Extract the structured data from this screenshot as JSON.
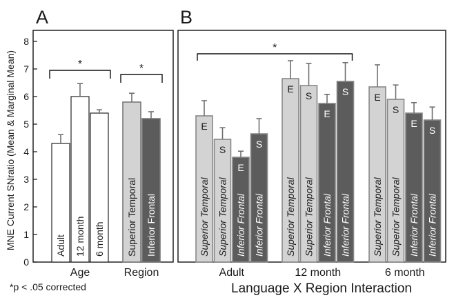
{
  "figure": {
    "ylabel": "MNE Current SNratio (Mean & Marginal Mean)",
    "footnote": "*p < .05 corrected",
    "sig_marker": "*"
  },
  "colors": {
    "white_bar": "#ffffff",
    "light_bar": "#d3d3d3",
    "dark_bar": "#5c5c5c",
    "error_bar": "#6f6f6f",
    "axis": "#111111"
  },
  "chart_data": [
    {
      "panel": "A",
      "type": "bar",
      "ylim": [
        0,
        8
      ],
      "yticks": [
        0,
        1,
        2,
        3,
        4,
        5,
        6,
        7,
        8
      ],
      "groups": [
        {
          "label": "Age",
          "bars": [
            {
              "label": "Adult",
              "value": 4.3,
              "error": 0.32,
              "fill": "white"
            },
            {
              "label": "12 month",
              "value": 6.0,
              "error": 0.47,
              "fill": "white"
            },
            {
              "label": "6 month",
              "value": 5.4,
              "error": 0.12,
              "fill": "white"
            }
          ]
        },
        {
          "label": "Region",
          "bars": [
            {
              "label": "Superior Temporal",
              "value": 5.8,
              "error": 0.32,
              "fill": "light"
            },
            {
              "label": "Inferior Frontal",
              "value": 5.2,
              "error": 0.25,
              "fill": "dark"
            }
          ]
        }
      ],
      "significance": [
        {
          "group": "Age",
          "from": 0,
          "to": 2,
          "label": "*"
        },
        {
          "group": "Region",
          "from": 0,
          "to": 1,
          "label": "*"
        }
      ]
    },
    {
      "panel": "B",
      "type": "bar",
      "xlabel": "Language X Region Interaction",
      "ylim": [
        0,
        8
      ],
      "groups": [
        {
          "label": "Adult",
          "bars": [
            {
              "label": "Superior Temporal",
              "code": "E",
              "value": 5.3,
              "error": 0.55,
              "fill": "light"
            },
            {
              "label": "Superior Temporal",
              "code": "S",
              "value": 4.45,
              "error": 0.42,
              "fill": "light"
            },
            {
              "label": "Inferior Frontal",
              "code": "E",
              "value": 3.8,
              "error": 0.22,
              "fill": "dark"
            },
            {
              "label": "Inferior Frontal",
              "code": "S",
              "value": 4.65,
              "error": 0.55,
              "fill": "dark"
            }
          ]
        },
        {
          "label": "12 month",
          "bars": [
            {
              "label": "Superior Temporal",
              "code": "E",
              "value": 6.65,
              "error": 0.65,
              "fill": "light"
            },
            {
              "label": "Superior Temporal",
              "code": "S",
              "value": 6.4,
              "error": 0.8,
              "fill": "light"
            },
            {
              "label": "Inferior Frontal",
              "code": "E",
              "value": 5.75,
              "error": 0.33,
              "fill": "dark"
            },
            {
              "label": "Inferior Frontal",
              "code": "S",
              "value": 6.55,
              "error": 0.68,
              "fill": "dark"
            }
          ]
        },
        {
          "label": "6 month",
          "bars": [
            {
              "label": "Superior Temporal",
              "code": "E",
              "value": 6.35,
              "error": 0.8,
              "fill": "light"
            },
            {
              "label": "Superior Temporal",
              "code": "S",
              "value": 5.9,
              "error": 0.52,
              "fill": "light"
            },
            {
              "label": "Inferior Frontal",
              "code": "E",
              "value": 5.4,
              "error": 0.38,
              "fill": "dark"
            },
            {
              "label": "Inferior Frontal",
              "code": "S",
              "value": 5.15,
              "error": 0.47,
              "fill": "dark"
            }
          ]
        }
      ],
      "significance": [
        {
          "from_group": "Adult",
          "to_group": "12 month",
          "label": "*"
        }
      ]
    }
  ]
}
